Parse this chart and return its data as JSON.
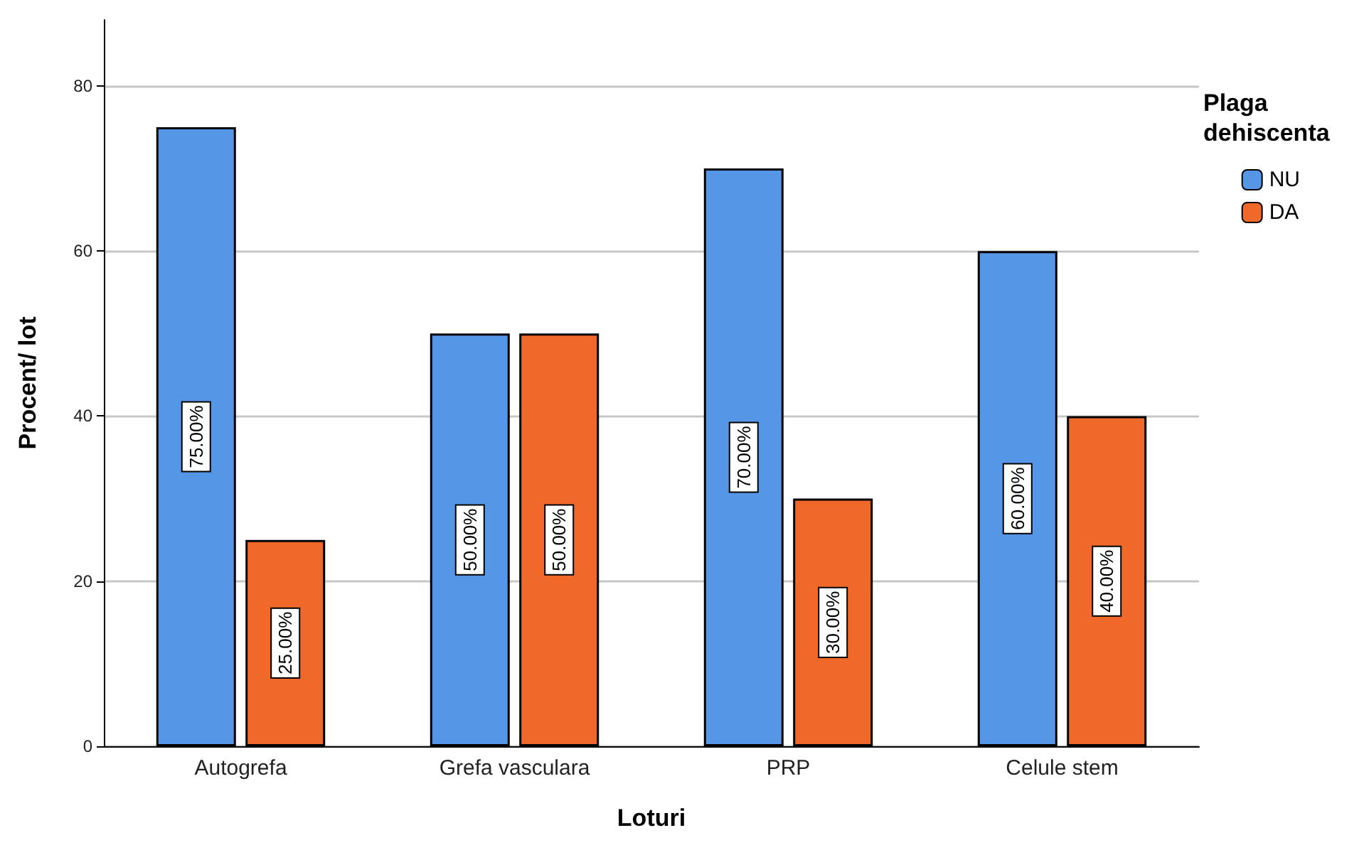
{
  "chart_data": {
    "type": "bar",
    "xlabel": "Loturi",
    "ylabel": "Procent/ lot",
    "legend_title": "Plaga dehiscenta",
    "categories": [
      "Autogrefa",
      "Grefa vasculara",
      "PRP",
      "Celule stem"
    ],
    "series": [
      {
        "name": "NU",
        "color": "#5596e6",
        "values": [
          75,
          50,
          70,
          60
        ],
        "value_labels": [
          "75.00%",
          "50.00%",
          "70.00%",
          "60.00%"
        ]
      },
      {
        "name": "DA",
        "color": "#f0682a",
        "values": [
          25,
          50,
          30,
          40
        ],
        "value_labels": [
          "25.00%",
          "50.00%",
          "30.00%",
          "40.00%"
        ]
      }
    ],
    "ylim": [
      0,
      88
    ],
    "yticks": [
      0,
      20,
      40,
      60,
      80
    ],
    "grid": "y",
    "legend": "right"
  }
}
